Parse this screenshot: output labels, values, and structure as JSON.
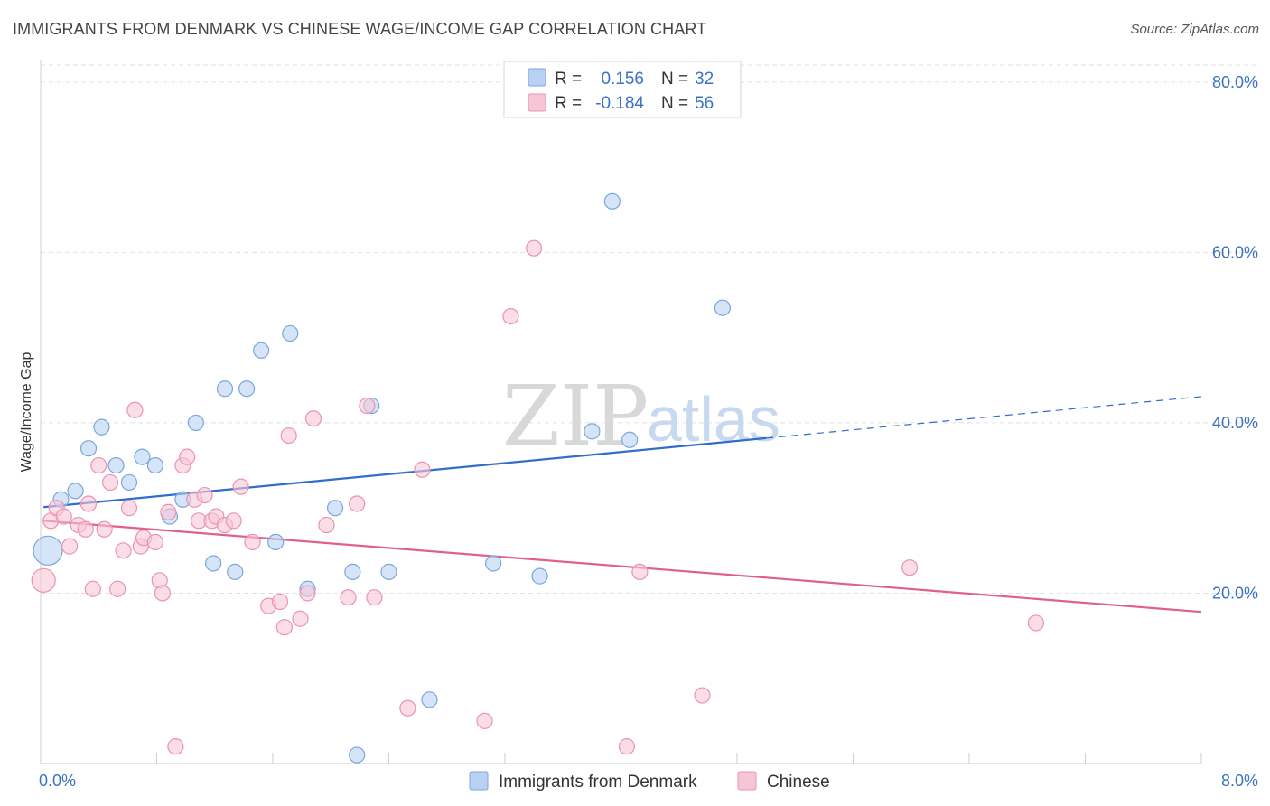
{
  "title": "IMMIGRANTS FROM DENMARK VS CHINESE WAGE/INCOME GAP CORRELATION CHART",
  "source": "Source: ZipAtlas.com",
  "colors": {
    "blue_fill": "#b9d2f2",
    "blue_stroke": "#7aa6de",
    "blue_line": "#2f6fcb",
    "pink_fill": "#f7c6d6",
    "pink_stroke": "#ea93b2",
    "pink_line": "#e0608d",
    "tick_text": "#3a72c4"
  },
  "legend": {
    "r_label": "R =",
    "n_label": "N =",
    "rows": [
      {
        "r": "0.156",
        "n": "32"
      },
      {
        "r": "-0.184",
        "n": "56"
      }
    ]
  },
  "watermark": {
    "zip": "ZIP",
    "atlas": "atlas"
  },
  "chart_data": {
    "type": "scatter",
    "title": "IMMIGRANTS FROM DENMARK VS CHINESE WAGE/INCOME GAP CORRELATION CHART",
    "xlabel": "",
    "ylabel": "Wage/Income Gap",
    "xlim": [
      0,
      8
    ],
    "ylim": [
      0,
      82
    ],
    "x_tick_labels": [
      "0.0%",
      "8.0%"
    ],
    "y_ticks": [
      20,
      40,
      60,
      80
    ],
    "y_tick_labels": [
      "20.0%",
      "40.0%",
      "60.0%",
      "80.0%"
    ],
    "grid": true,
    "series": [
      {
        "name": "Immigrants from Denmark",
        "r": 0.156,
        "n": 32,
        "trend": {
          "x0": 0.02,
          "y0": 30.1,
          "x1": 5.0,
          "y1": 38.2,
          "x_dash_end": 8.0
        },
        "points": [
          {
            "x": 0.05,
            "y": 25.0,
            "s": "big"
          },
          {
            "x": 0.14,
            "y": 31.0
          },
          {
            "x": 0.24,
            "y": 32.0
          },
          {
            "x": 0.33,
            "y": 37.0
          },
          {
            "x": 0.42,
            "y": 39.5
          },
          {
            "x": 0.52,
            "y": 35.0
          },
          {
            "x": 0.61,
            "y": 33.0
          },
          {
            "x": 0.7,
            "y": 36.0
          },
          {
            "x": 0.79,
            "y": 35.0
          },
          {
            "x": 0.89,
            "y": 29.0
          },
          {
            "x": 0.98,
            "y": 31.0
          },
          {
            "x": 1.07,
            "y": 40.0
          },
          {
            "x": 1.19,
            "y": 23.5
          },
          {
            "x": 1.27,
            "y": 44.0
          },
          {
            "x": 1.34,
            "y": 22.5
          },
          {
            "x": 1.42,
            "y": 44.0
          },
          {
            "x": 1.52,
            "y": 48.5
          },
          {
            "x": 1.62,
            "y": 26.0
          },
          {
            "x": 1.72,
            "y": 50.5
          },
          {
            "x": 1.84,
            "y": 20.5
          },
          {
            "x": 2.03,
            "y": 30.0
          },
          {
            "x": 2.15,
            "y": 22.5
          },
          {
            "x": 2.18,
            "y": 1.0
          },
          {
            "x": 2.28,
            "y": 42.0
          },
          {
            "x": 2.4,
            "y": 22.5
          },
          {
            "x": 2.68,
            "y": 7.5
          },
          {
            "x": 3.12,
            "y": 23.5
          },
          {
            "x": 3.44,
            "y": 22.0
          },
          {
            "x": 3.8,
            "y": 39.0
          },
          {
            "x": 3.94,
            "y": 66.0
          },
          {
            "x": 4.06,
            "y": 38.0
          },
          {
            "x": 4.7,
            "y": 53.5
          }
        ]
      },
      {
        "name": "Chinese",
        "r": -0.184,
        "n": 56,
        "trend": {
          "x0": 0.02,
          "y0": 28.5,
          "x1": 8.0,
          "y1": 17.8
        },
        "points": [
          {
            "x": 0.02,
            "y": 21.5,
            "s": "med"
          },
          {
            "x": 0.07,
            "y": 28.5
          },
          {
            "x": 0.11,
            "y": 30.0
          },
          {
            "x": 0.16,
            "y": 29.0
          },
          {
            "x": 0.2,
            "y": 25.5
          },
          {
            "x": 0.26,
            "y": 28.0
          },
          {
            "x": 0.31,
            "y": 27.5
          },
          {
            "x": 0.33,
            "y": 30.5
          },
          {
            "x": 0.36,
            "y": 20.5
          },
          {
            "x": 0.4,
            "y": 35.0
          },
          {
            "x": 0.44,
            "y": 27.5
          },
          {
            "x": 0.48,
            "y": 33.0
          },
          {
            "x": 0.53,
            "y": 20.5
          },
          {
            "x": 0.57,
            "y": 25.0
          },
          {
            "x": 0.61,
            "y": 30.0
          },
          {
            "x": 0.65,
            "y": 41.5
          },
          {
            "x": 0.69,
            "y": 25.5
          },
          {
            "x": 0.71,
            "y": 26.5
          },
          {
            "x": 0.79,
            "y": 26.0
          },
          {
            "x": 0.82,
            "y": 21.5
          },
          {
            "x": 0.84,
            "y": 20.0
          },
          {
            "x": 0.88,
            "y": 29.5
          },
          {
            "x": 0.93,
            "y": 2.0
          },
          {
            "x": 0.98,
            "y": 35.0
          },
          {
            "x": 1.01,
            "y": 36.0
          },
          {
            "x": 1.06,
            "y": 31.0
          },
          {
            "x": 1.09,
            "y": 28.5
          },
          {
            "x": 1.13,
            "y": 31.5
          },
          {
            "x": 1.18,
            "y": 28.5
          },
          {
            "x": 1.21,
            "y": 29.0
          },
          {
            "x": 1.27,
            "y": 28.0
          },
          {
            "x": 1.33,
            "y": 28.5
          },
          {
            "x": 1.38,
            "y": 32.5
          },
          {
            "x": 1.46,
            "y": 26.0
          },
          {
            "x": 1.57,
            "y": 18.5
          },
          {
            "x": 1.65,
            "y": 19.0
          },
          {
            "x": 1.68,
            "y": 16.0
          },
          {
            "x": 1.71,
            "y": 38.5
          },
          {
            "x": 1.79,
            "y": 17.0
          },
          {
            "x": 1.84,
            "y": 20.0
          },
          {
            "x": 1.88,
            "y": 40.5
          },
          {
            "x": 1.97,
            "y": 28.0
          },
          {
            "x": 2.12,
            "y": 19.5
          },
          {
            "x": 2.18,
            "y": 30.5
          },
          {
            "x": 2.25,
            "y": 42.0
          },
          {
            "x": 2.3,
            "y": 19.5
          },
          {
            "x": 2.53,
            "y": 6.5
          },
          {
            "x": 2.63,
            "y": 34.5
          },
          {
            "x": 3.06,
            "y": 5.0
          },
          {
            "x": 3.24,
            "y": 52.5
          },
          {
            "x": 3.4,
            "y": 60.5
          },
          {
            "x": 4.04,
            "y": 2.0
          },
          {
            "x": 4.13,
            "y": 22.5
          },
          {
            "x": 4.56,
            "y": 8.0
          },
          {
            "x": 5.99,
            "y": 23.0
          },
          {
            "x": 6.86,
            "y": 16.5
          }
        ]
      }
    ]
  }
}
